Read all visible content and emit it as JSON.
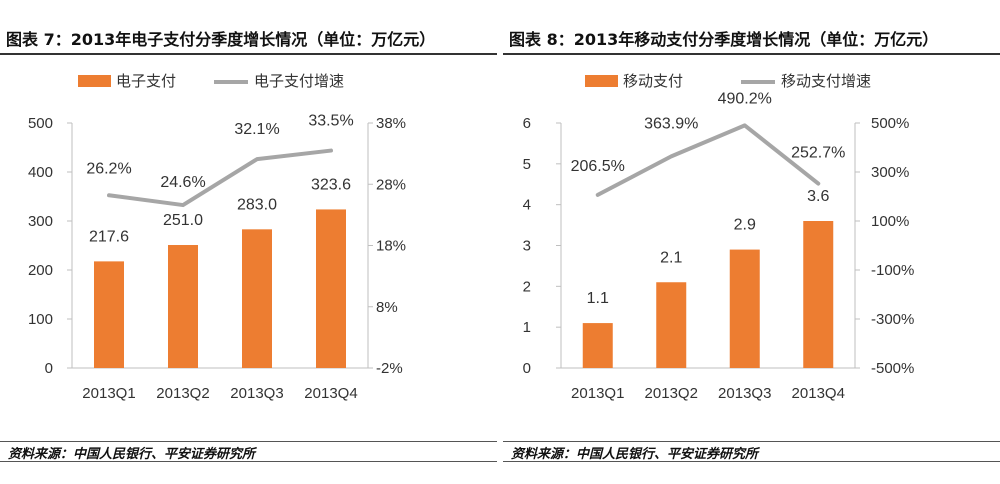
{
  "chart_data": [
    {
      "type": "bar",
      "title": "图表 7：2013年电子支付分季度增长情况（单位：万亿元）",
      "categories": [
        "2013Q1",
        "2013Q2",
        "2013Q3",
        "2013Q4"
      ],
      "series": [
        {
          "name": "电子支付",
          "type": "bar",
          "axis": "left",
          "values": [
            217.6,
            251.0,
            283.0,
            323.6
          ],
          "labels": [
            "217.6",
            "251.0",
            "283.0",
            "323.6"
          ]
        },
        {
          "name": "电子支付增速",
          "type": "line",
          "axis": "right",
          "values": [
            26.2,
            24.6,
            32.1,
            33.5
          ],
          "labels": [
            "26.2%",
            "24.6%",
            "32.1%",
            "33.5%"
          ]
        }
      ],
      "left_axis": {
        "min": 0,
        "max": 500,
        "ticks": [
          0,
          100,
          200,
          300,
          400,
          500
        ],
        "tick_labels": [
          "0",
          "100",
          "200",
          "300",
          "400",
          "500"
        ]
      },
      "right_axis": {
        "min": -2,
        "max": 38,
        "ticks": [
          -2,
          8,
          18,
          28,
          38
        ],
        "tick_labels": [
          "-2%",
          "8%",
          "18%",
          "28%",
          "38%"
        ]
      },
      "legend": "top",
      "source": "资料来源：中国人民银行、平安证券研究所"
    },
    {
      "type": "bar",
      "title": "图表 8：2013年移动支付分季度增长情况（单位：万亿元）",
      "categories": [
        "2013Q1",
        "2013Q2",
        "2013Q3",
        "2013Q4"
      ],
      "series": [
        {
          "name": "移动支付",
          "type": "bar",
          "axis": "left",
          "values": [
            1.1,
            2.1,
            2.9,
            3.6
          ],
          "labels": [
            "1.1",
            "2.1",
            "2.9",
            "3.6"
          ]
        },
        {
          "name": "移动支付增速",
          "type": "line",
          "axis": "right",
          "values": [
            206.5,
            363.9,
            490.2,
            252.7
          ],
          "labels": [
            "206.5%",
            "363.9%",
            "490.2%",
            "252.7%"
          ]
        }
      ],
      "left_axis": {
        "min": 0,
        "max": 6,
        "ticks": [
          0,
          1,
          2,
          3,
          4,
          5,
          6
        ],
        "tick_labels": [
          "0",
          "1",
          "2",
          "3",
          "4",
          "5",
          "6"
        ]
      },
      "right_axis": {
        "min": -500,
        "max": 500,
        "ticks": [
          -500,
          -300,
          -100,
          100,
          300,
          500
        ],
        "tick_labels": [
          "-500%",
          "-300%",
          "-100%",
          "100%",
          "300%",
          "500%"
        ]
      },
      "legend": "top",
      "source": "资料来源：中国人民银行、平安证券研究所"
    }
  ],
  "colors": {
    "bar": "#ED7D31",
    "line": "#A6A6A6",
    "axis": "#BFBFBF"
  }
}
